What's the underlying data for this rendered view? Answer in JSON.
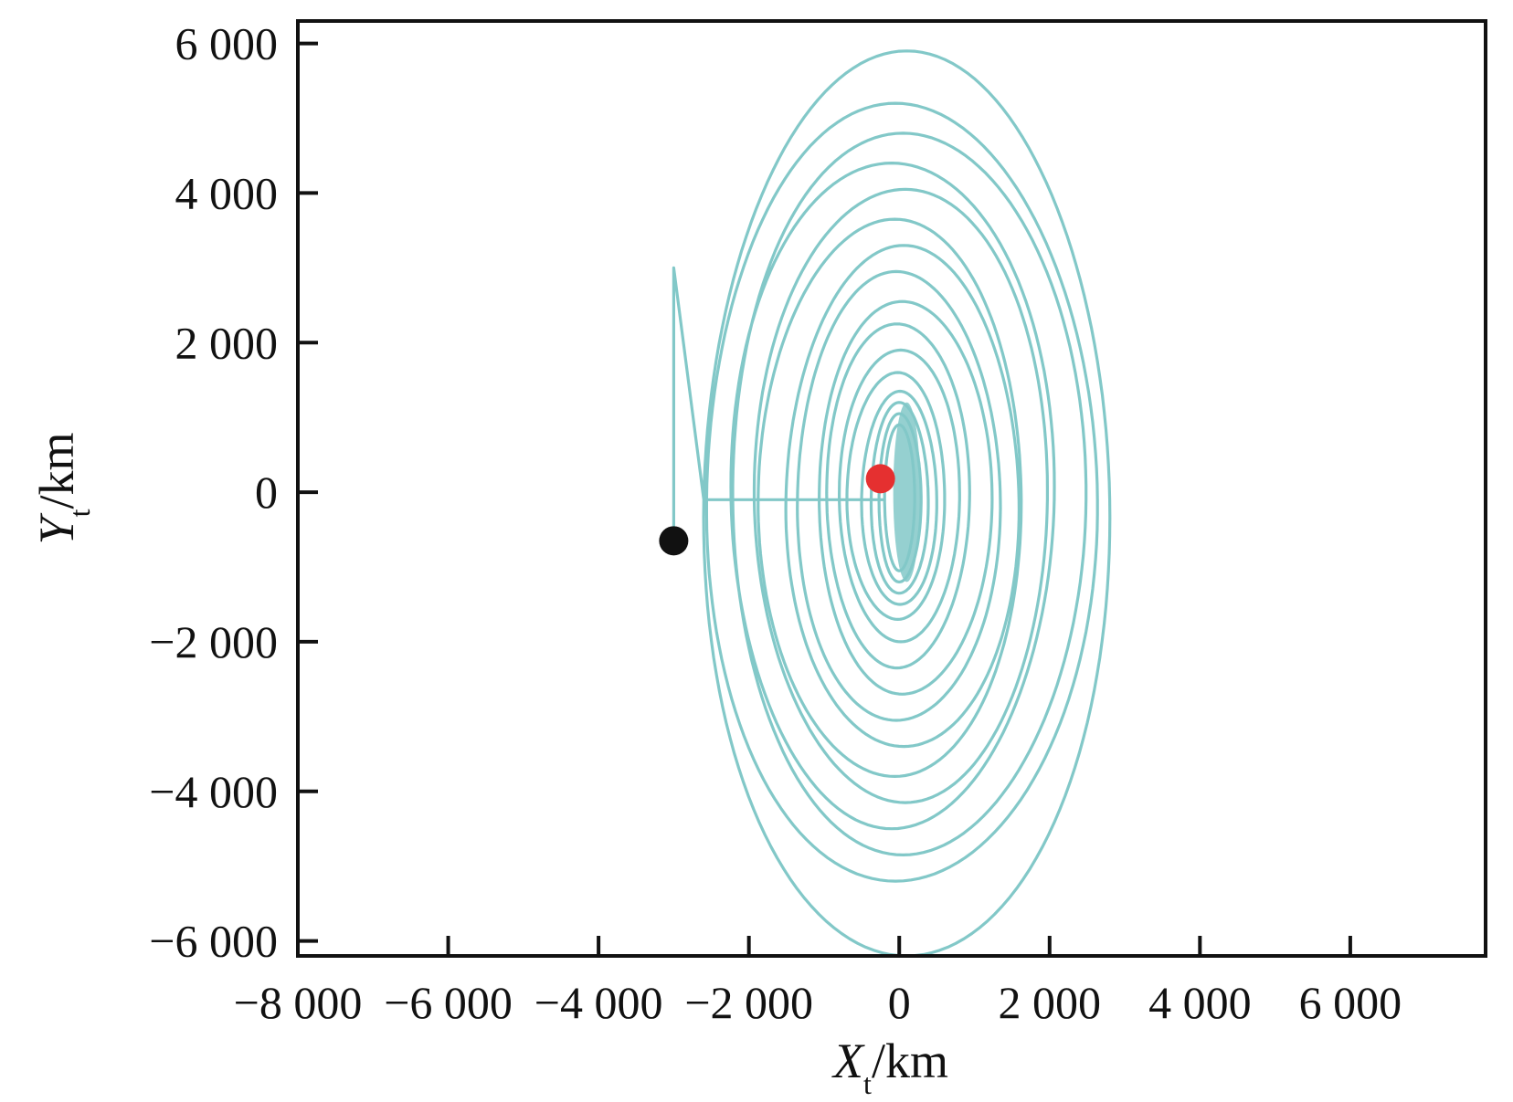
{
  "chart_data": {
    "type": "line",
    "title": "",
    "xlabel": {
      "symbol": "X",
      "subscript": "t",
      "unit": "/km"
    },
    "ylabel": {
      "symbol": "Y",
      "subscript": "t",
      "unit": "/km"
    },
    "xlim": [
      -8000,
      7800
    ],
    "ylim": [
      -6200,
      6300
    ],
    "xticks": [
      {
        "value": -8000,
        "label": "−8 000"
      },
      {
        "value": -6000,
        "label": "−6 000"
      },
      {
        "value": -4000,
        "label": "−4 000"
      },
      {
        "value": -2000,
        "label": "−2 000"
      },
      {
        "value": 0,
        "label": "0"
      },
      {
        "value": 2000,
        "label": "2 000"
      },
      {
        "value": 4000,
        "label": "4 000"
      },
      {
        "value": 6000,
        "label": "6 000"
      }
    ],
    "yticks": [
      {
        "value": 6000,
        "label": "6 000"
      },
      {
        "value": 4000,
        "label": "4 000"
      },
      {
        "value": 2000,
        "label": "2 000"
      },
      {
        "value": 0,
        "label": "0"
      },
      {
        "value": -2000,
        "label": "−2 000"
      },
      {
        "value": -4000,
        "label": "−4 000"
      },
      {
        "value": -6000,
        "label": "−6 000"
      }
    ],
    "grid": false,
    "legend": "none",
    "trajectory": {
      "color": "#82c8c8",
      "start": {
        "x": -3000,
        "y": -650
      },
      "lead_in_top": {
        "x": -3000,
        "y": 3000
      },
      "center": {
        "x": 100,
        "y": -100
      },
      "loops": [
        {
          "rx": 2700,
          "ry_top": 6100,
          "ry_bottom": 6000,
          "cx": 100
        },
        {
          "rx": 2600,
          "ry_top": 5100,
          "ry_bottom": 5300,
          "cx": -50
        },
        {
          "rx": 2350,
          "ry_top": 4750,
          "ry_bottom": 4900,
          "cx": 50
        },
        {
          "rx": 2150,
          "ry_top": 4400,
          "ry_bottom": 4500,
          "cx": -100
        },
        {
          "rx": 1950,
          "ry_top": 4050,
          "ry_bottom": 4150,
          "cx": 80
        },
        {
          "rx": 1750,
          "ry_top": 3700,
          "ry_bottom": 3750,
          "cx": -60
        },
        {
          "rx": 1550,
          "ry_top": 3300,
          "ry_bottom": 3400,
          "cx": 60
        },
        {
          "rx": 1350,
          "ry_top": 2950,
          "ry_bottom": 3050,
          "cx": -40
        },
        {
          "rx": 1150,
          "ry_top": 2600,
          "ry_bottom": 2650,
          "cx": 40
        },
        {
          "rx": 950,
          "ry_top": 2250,
          "ry_bottom": 2350,
          "cx": -30
        },
        {
          "rx": 800,
          "ry_top": 1900,
          "ry_bottom": 2000,
          "cx": 20
        },
        {
          "rx": 650,
          "ry_top": 1600,
          "ry_bottom": 1700,
          "cx": -20
        },
        {
          "rx": 500,
          "ry_top": 1400,
          "ry_bottom": 1450,
          "cx": 10
        },
        {
          "rx": 380,
          "ry_top": 1250,
          "ry_bottom": 1300,
          "cx": 0
        },
        {
          "rx": 280,
          "ry_top": 1100,
          "ry_bottom": 1150,
          "cx": 0
        },
        {
          "rx": 200,
          "ry_top": 950,
          "ry_bottom": 1000,
          "cx": 0
        }
      ]
    },
    "markers": [
      {
        "name": "start",
        "x": -3000,
        "y": -650,
        "color": "#111111"
      },
      {
        "name": "target",
        "x": -250,
        "y": 180,
        "color": "#e53030"
      }
    ]
  }
}
